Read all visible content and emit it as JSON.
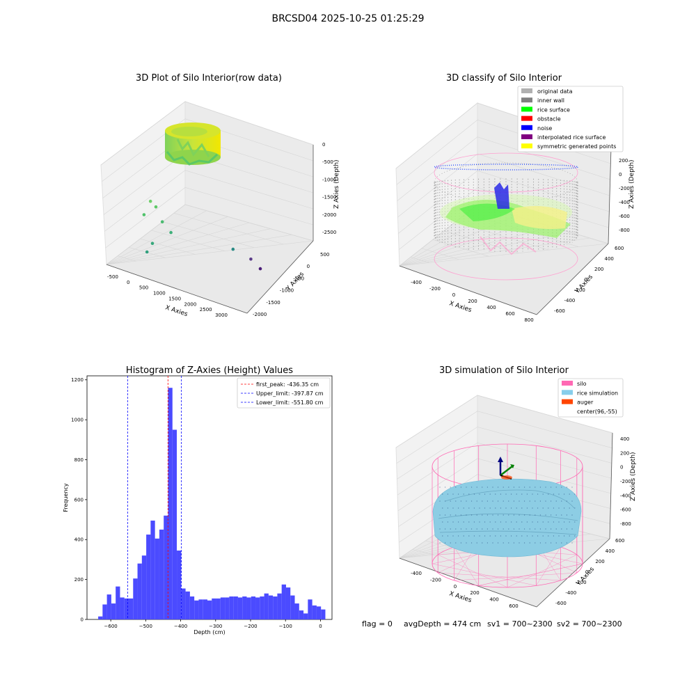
{
  "figure": {
    "title": "BRCSD04 2025-10-25 01:25:29",
    "status_flag": "flag = 0",
    "status_avg": "avgDepth = 474 cm",
    "status_sv1": "sv1 = 700~2300",
    "status_sv2": "sv2 = 700~2300"
  },
  "colors": {
    "histogram_bar": "#4b4bff",
    "first_peak_line": "#ff0000",
    "limit_line": "#0000ff",
    "rice_gradient": [
      "#3bb36a",
      "#7fd25a",
      "#c9e43a",
      "#f2e700"
    ],
    "silo_wire": "#ff69b4",
    "inner_wall": "#808080",
    "rice_surface": "#00ff00",
    "noise": "#0000ff",
    "symmetric": "#ffff00",
    "rice_sim": "#87ceeb",
    "auger": "#ff4500"
  },
  "chart_data": [
    {
      "type": "scatter",
      "title": "3D Plot of Silo Interior(row data)",
      "xlabel": "X Axies",
      "ylabel": "Y Axies",
      "zlabel": "Z Axies (Depth)",
      "x_ticks": [
        "-500",
        "0",
        "500",
        "1000",
        "1500",
        "2000",
        "2500",
        "3000"
      ],
      "y_ticks": [
        "500",
        "0",
        "-500",
        "-1000",
        "-1500",
        "-2000"
      ],
      "z_ticks": [
        "0",
        "-500",
        "-1000",
        "-1500",
        "-2000",
        "-2500"
      ],
      "xlim": [
        -700,
        3200
      ],
      "ylim": [
        -2100,
        700
      ],
      "zlim": [
        -2700,
        100
      ],
      "outliers": [
        {
          "x": 300,
          "y": 0,
          "z": -800,
          "color": "#6fcf6a"
        },
        {
          "x": 500,
          "y": 100,
          "z": -900,
          "color": "#5cc866"
        },
        {
          "x": 100,
          "y": 0,
          "z": -1100,
          "color": "#4fc26a"
        },
        {
          "x": 700,
          "y": 100,
          "z": -1200,
          "color": "#4aba70"
        },
        {
          "x": 1000,
          "y": 200,
          "z": -1400,
          "color": "#3fb07a"
        },
        {
          "x": 300,
          "y": -200,
          "z": -1700,
          "color": "#38a87c"
        },
        {
          "x": 100,
          "y": -300,
          "z": -1900,
          "color": "#30a07e"
        },
        {
          "x": 2500,
          "y": -1200,
          "z": -1700,
          "color": "#2a8a84"
        },
        {
          "x": 2900,
          "y": -1700,
          "z": -1900,
          "color": "#5a3a88"
        },
        {
          "x": 3100,
          "y": -2000,
          "z": -2100,
          "color": "#4b1d78"
        }
      ]
    },
    {
      "type": "scatter",
      "title": "3D classify of Silo Interior",
      "xlabel": "X Axies",
      "ylabel": "Y Axies",
      "zlabel": "Z Axies (Depth)",
      "x_ticks": [
        "-400",
        "-200",
        "0",
        "200",
        "400",
        "600",
        "800"
      ],
      "y_ticks": [
        "600",
        "400",
        "200",
        "0",
        "-200",
        "-400",
        "-600"
      ],
      "z_ticks": [
        "200",
        "0",
        "-200",
        "-400",
        "-600",
        "-800"
      ],
      "legend": [
        {
          "label": "original data",
          "color": "#b0b0b0"
        },
        {
          "label": "inner wall",
          "color": "#808080"
        },
        {
          "label": "rice surface",
          "color": "#00ff00"
        },
        {
          "label": "obstacle",
          "color": "#ff0000"
        },
        {
          "label": "noise",
          "color": "#0000ff"
        },
        {
          "label": "interpolated rice surface",
          "color": "#800080"
        },
        {
          "label": "symmetric generated points",
          "color": "#ffff00"
        }
      ]
    },
    {
      "type": "bar",
      "title": "Histogram of Z-Axies (Height) Values",
      "xlabel": "Depth (cm)",
      "ylabel": "Frequency",
      "xlim": [
        -668,
        33
      ],
      "ylim": [
        0,
        1220
      ],
      "x_ticks": [
        -600,
        -500,
        -400,
        -300,
        -200,
        -100,
        0
      ],
      "y_ticks": [
        0,
        200,
        400,
        600,
        800,
        1000,
        1200
      ],
      "bin_start": -636,
      "bin_width": 12.5,
      "values": [
        15,
        75,
        125,
        80,
        165,
        110,
        105,
        105,
        205,
        280,
        320,
        425,
        495,
        405,
        450,
        520,
        1160,
        950,
        345,
        155,
        140,
        115,
        95,
        100,
        100,
        95,
        105,
        105,
        110,
        110,
        115,
        115,
        110,
        115,
        110,
        115,
        110,
        115,
        130,
        120,
        115,
        130,
        175,
        160,
        120,
        80,
        45,
        30,
        100,
        70,
        65,
        50
      ],
      "vlines": [
        {
          "label": "first_peak: -436.35 cm",
          "x": -436.35,
          "color": "#ff0000"
        },
        {
          "label": "Upper_limit: -397.87 cm",
          "x": -397.87,
          "color": "#0000ff"
        },
        {
          "label": "Lower_limit: -551.80 cm",
          "x": -551.8,
          "color": "#0000ff"
        }
      ]
    },
    {
      "type": "scatter",
      "title": "3D simulation of Silo Interior",
      "xlabel": "X Axies",
      "ylabel": "Y Axies",
      "zlabel": "Z Axies (Depth)",
      "x_ticks": [
        "-400",
        "-200",
        "0",
        "200",
        "400",
        "600"
      ],
      "y_ticks": [
        "600",
        "400",
        "200",
        "0",
        "-200",
        "-400",
        "-600"
      ],
      "z_ticks": [
        "400",
        "200",
        "0",
        "-200",
        "-400",
        "-600",
        "-800"
      ],
      "legend": [
        {
          "label": "silo",
          "color": "#ff69b4"
        },
        {
          "label": "rice simulation",
          "color": "#87ceeb"
        },
        {
          "label": "auger",
          "color": "#ff4500"
        },
        {
          "label": "center(96,-55)",
          "color": ""
        }
      ]
    }
  ]
}
